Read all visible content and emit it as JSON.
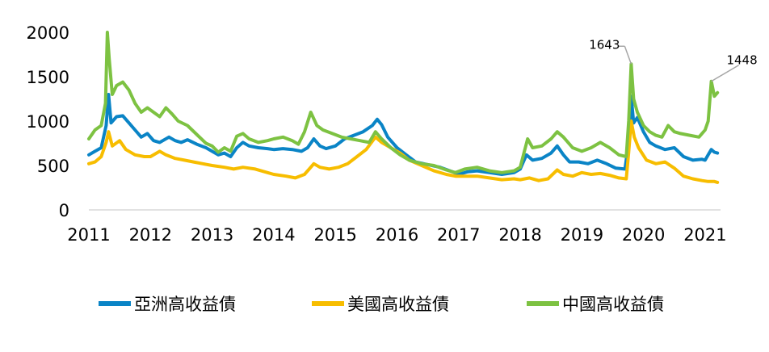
{
  "chart_data": {
    "type": "line",
    "title": "",
    "xlabel": "",
    "ylabel": "",
    "ylim": [
      0,
      2000
    ],
    "xlim": [
      2011,
      2021.25
    ],
    "yticks": [
      0,
      500,
      1000,
      1500,
      2000
    ],
    "xticks": [
      2011,
      2012,
      2013,
      2014,
      2015,
      2016,
      2017,
      2018,
      2019,
      2020,
      2021
    ],
    "grid": false,
    "legend_position": "bottom",
    "annotations": [
      {
        "label": "1643",
        "series": 2,
        "x": 2019.8,
        "y": 1643
      },
      {
        "label": "1448",
        "series": 2,
        "x": 2021.1,
        "y": 1448
      }
    ],
    "series": [
      {
        "name": "亞洲高收益債",
        "color": "#0a84c6",
        "points": [
          [
            2011.0,
            620
          ],
          [
            2011.1,
            660
          ],
          [
            2011.2,
            700
          ],
          [
            2011.28,
            950
          ],
          [
            2011.32,
            1300
          ],
          [
            2011.36,
            980
          ],
          [
            2011.45,
            1050
          ],
          [
            2011.55,
            1060
          ],
          [
            2011.65,
            980
          ],
          [
            2011.75,
            900
          ],
          [
            2011.85,
            820
          ],
          [
            2011.95,
            860
          ],
          [
            2012.05,
            780
          ],
          [
            2012.15,
            760
          ],
          [
            2012.3,
            820
          ],
          [
            2012.4,
            780
          ],
          [
            2012.5,
            760
          ],
          [
            2012.6,
            790
          ],
          [
            2012.75,
            740
          ],
          [
            2012.9,
            700
          ],
          [
            2013.0,
            660
          ],
          [
            2013.1,
            620
          ],
          [
            2013.2,
            640
          ],
          [
            2013.3,
            600
          ],
          [
            2013.4,
            700
          ],
          [
            2013.5,
            760
          ],
          [
            2013.6,
            720
          ],
          [
            2013.75,
            700
          ],
          [
            2013.9,
            690
          ],
          [
            2014.0,
            680
          ],
          [
            2014.15,
            690
          ],
          [
            2014.3,
            680
          ],
          [
            2014.45,
            660
          ],
          [
            2014.55,
            700
          ],
          [
            2014.65,
            800
          ],
          [
            2014.75,
            720
          ],
          [
            2014.85,
            690
          ],
          [
            2015.0,
            720
          ],
          [
            2015.15,
            800
          ],
          [
            2015.3,
            840
          ],
          [
            2015.45,
            880
          ],
          [
            2015.6,
            950
          ],
          [
            2015.68,
            1020
          ],
          [
            2015.75,
            960
          ],
          [
            2015.85,
            820
          ],
          [
            2016.0,
            700
          ],
          [
            2016.15,
            620
          ],
          [
            2016.3,
            540
          ],
          [
            2016.5,
            510
          ],
          [
            2016.7,
            480
          ],
          [
            2016.9,
            430
          ],
          [
            2017.0,
            400
          ],
          [
            2017.15,
            430
          ],
          [
            2017.3,
            440
          ],
          [
            2017.5,
            420
          ],
          [
            2017.7,
            400
          ],
          [
            2017.9,
            420
          ],
          [
            2018.0,
            460
          ],
          [
            2018.1,
            620
          ],
          [
            2018.2,
            560
          ],
          [
            2018.35,
            580
          ],
          [
            2018.5,
            640
          ],
          [
            2018.6,
            720
          ],
          [
            2018.7,
            620
          ],
          [
            2018.8,
            540
          ],
          [
            2018.95,
            540
          ],
          [
            2019.1,
            520
          ],
          [
            2019.25,
            560
          ],
          [
            2019.4,
            520
          ],
          [
            2019.55,
            470
          ],
          [
            2019.7,
            460
          ],
          [
            2019.76,
            760
          ],
          [
            2019.8,
            1280
          ],
          [
            2019.84,
            980
          ],
          [
            2019.9,
            1040
          ],
          [
            2020.0,
            880
          ],
          [
            2020.1,
            760
          ],
          [
            2020.2,
            720
          ],
          [
            2020.35,
            680
          ],
          [
            2020.5,
            700
          ],
          [
            2020.65,
            600
          ],
          [
            2020.8,
            560
          ],
          [
            2020.95,
            570
          ],
          [
            2021.0,
            560
          ],
          [
            2021.05,
            620
          ],
          [
            2021.1,
            680
          ],
          [
            2021.15,
            650
          ],
          [
            2021.2,
            640
          ]
        ]
      },
      {
        "name": "美國高收益債",
        "color": "#f7bd00",
        "points": [
          [
            2011.0,
            520
          ],
          [
            2011.1,
            540
          ],
          [
            2011.2,
            600
          ],
          [
            2011.28,
            760
          ],
          [
            2011.32,
            880
          ],
          [
            2011.38,
            720
          ],
          [
            2011.5,
            780
          ],
          [
            2011.6,
            680
          ],
          [
            2011.75,
            620
          ],
          [
            2011.9,
            600
          ],
          [
            2012.0,
            600
          ],
          [
            2012.15,
            660
          ],
          [
            2012.25,
            620
          ],
          [
            2012.4,
            580
          ],
          [
            2012.55,
            560
          ],
          [
            2012.7,
            540
          ],
          [
            2012.85,
            520
          ],
          [
            2013.0,
            500
          ],
          [
            2013.2,
            480
          ],
          [
            2013.35,
            460
          ],
          [
            2013.5,
            480
          ],
          [
            2013.7,
            460
          ],
          [
            2013.9,
            420
          ],
          [
            2014.0,
            400
          ],
          [
            2014.2,
            380
          ],
          [
            2014.35,
            360
          ],
          [
            2014.5,
            400
          ],
          [
            2014.65,
            520
          ],
          [
            2014.75,
            480
          ],
          [
            2014.9,
            460
          ],
          [
            2015.05,
            480
          ],
          [
            2015.2,
            520
          ],
          [
            2015.35,
            600
          ],
          [
            2015.5,
            680
          ],
          [
            2015.65,
            820
          ],
          [
            2015.75,
            760
          ],
          [
            2015.9,
            700
          ],
          [
            2016.05,
            640
          ],
          [
            2016.2,
            560
          ],
          [
            2016.4,
            500
          ],
          [
            2016.6,
            440
          ],
          [
            2016.8,
            400
          ],
          [
            2016.95,
            380
          ],
          [
            2017.1,
            380
          ],
          [
            2017.3,
            380
          ],
          [
            2017.5,
            360
          ],
          [
            2017.7,
            340
          ],
          [
            2017.9,
            350
          ],
          [
            2018.0,
            340
          ],
          [
            2018.15,
            360
          ],
          [
            2018.3,
            330
          ],
          [
            2018.45,
            350
          ],
          [
            2018.6,
            450
          ],
          [
            2018.7,
            400
          ],
          [
            2018.85,
            380
          ],
          [
            2019.0,
            420
          ],
          [
            2019.15,
            400
          ],
          [
            2019.3,
            410
          ],
          [
            2019.45,
            390
          ],
          [
            2019.6,
            360
          ],
          [
            2019.72,
            350
          ],
          [
            2019.76,
            650
          ],
          [
            2019.8,
            1000
          ],
          [
            2019.85,
            820
          ],
          [
            2019.92,
            700
          ],
          [
            2020.05,
            560
          ],
          [
            2020.2,
            520
          ],
          [
            2020.35,
            540
          ],
          [
            2020.5,
            470
          ],
          [
            2020.65,
            380
          ],
          [
            2020.8,
            350
          ],
          [
            2020.95,
            330
          ],
          [
            2021.05,
            320
          ],
          [
            2021.15,
            320
          ],
          [
            2021.2,
            310
          ]
        ]
      },
      {
        "name": "中國高收益債",
        "color": "#7dc242",
        "points": [
          [
            2011.0,
            800
          ],
          [
            2011.1,
            900
          ],
          [
            2011.2,
            950
          ],
          [
            2011.27,
            1200
          ],
          [
            2011.3,
            2000
          ],
          [
            2011.33,
            1700
          ],
          [
            2011.38,
            1300
          ],
          [
            2011.45,
            1400
          ],
          [
            2011.55,
            1440
          ],
          [
            2011.65,
            1350
          ],
          [
            2011.75,
            1200
          ],
          [
            2011.85,
            1100
          ],
          [
            2011.95,
            1150
          ],
          [
            2012.05,
            1100
          ],
          [
            2012.15,
            1050
          ],
          [
            2012.25,
            1150
          ],
          [
            2012.35,
            1080
          ],
          [
            2012.45,
            1000
          ],
          [
            2012.6,
            950
          ],
          [
            2012.75,
            850
          ],
          [
            2012.9,
            750
          ],
          [
            2013.0,
            720
          ],
          [
            2013.1,
            650
          ],
          [
            2013.2,
            700
          ],
          [
            2013.3,
            660
          ],
          [
            2013.4,
            830
          ],
          [
            2013.5,
            860
          ],
          [
            2013.6,
            800
          ],
          [
            2013.75,
            760
          ],
          [
            2013.9,
            780
          ],
          [
            2014.0,
            800
          ],
          [
            2014.15,
            820
          ],
          [
            2014.3,
            780
          ],
          [
            2014.4,
            740
          ],
          [
            2014.5,
            880
          ],
          [
            2014.6,
            1100
          ],
          [
            2014.7,
            950
          ],
          [
            2014.8,
            900
          ],
          [
            2014.95,
            860
          ],
          [
            2015.1,
            820
          ],
          [
            2015.25,
            800
          ],
          [
            2015.4,
            780
          ],
          [
            2015.55,
            760
          ],
          [
            2015.65,
            880
          ],
          [
            2015.75,
            800
          ],
          [
            2015.9,
            700
          ],
          [
            2016.05,
            620
          ],
          [
            2016.2,
            560
          ],
          [
            2016.4,
            520
          ],
          [
            2016.6,
            500
          ],
          [
            2016.8,
            450
          ],
          [
            2016.95,
            420
          ],
          [
            2017.1,
            460
          ],
          [
            2017.3,
            480
          ],
          [
            2017.5,
            440
          ],
          [
            2017.7,
            420
          ],
          [
            2017.9,
            440
          ],
          [
            2018.0,
            480
          ],
          [
            2018.12,
            800
          ],
          [
            2018.2,
            700
          ],
          [
            2018.35,
            720
          ],
          [
            2018.5,
            800
          ],
          [
            2018.6,
            880
          ],
          [
            2018.7,
            820
          ],
          [
            2018.85,
            700
          ],
          [
            2019.0,
            660
          ],
          [
            2019.15,
            700
          ],
          [
            2019.3,
            760
          ],
          [
            2019.45,
            700
          ],
          [
            2019.6,
            620
          ],
          [
            2019.72,
            600
          ],
          [
            2019.76,
            1000
          ],
          [
            2019.8,
            1643
          ],
          [
            2019.84,
            1250
          ],
          [
            2019.9,
            1100
          ],
          [
            2020.0,
            950
          ],
          [
            2020.1,
            880
          ],
          [
            2020.2,
            840
          ],
          [
            2020.3,
            820
          ],
          [
            2020.4,
            950
          ],
          [
            2020.5,
            880
          ],
          [
            2020.6,
            860
          ],
          [
            2020.75,
            840
          ],
          [
            2020.9,
            820
          ],
          [
            2021.0,
            900
          ],
          [
            2021.05,
            1000
          ],
          [
            2021.1,
            1448
          ],
          [
            2021.15,
            1280
          ],
          [
            2021.2,
            1320
          ]
        ]
      }
    ]
  }
}
